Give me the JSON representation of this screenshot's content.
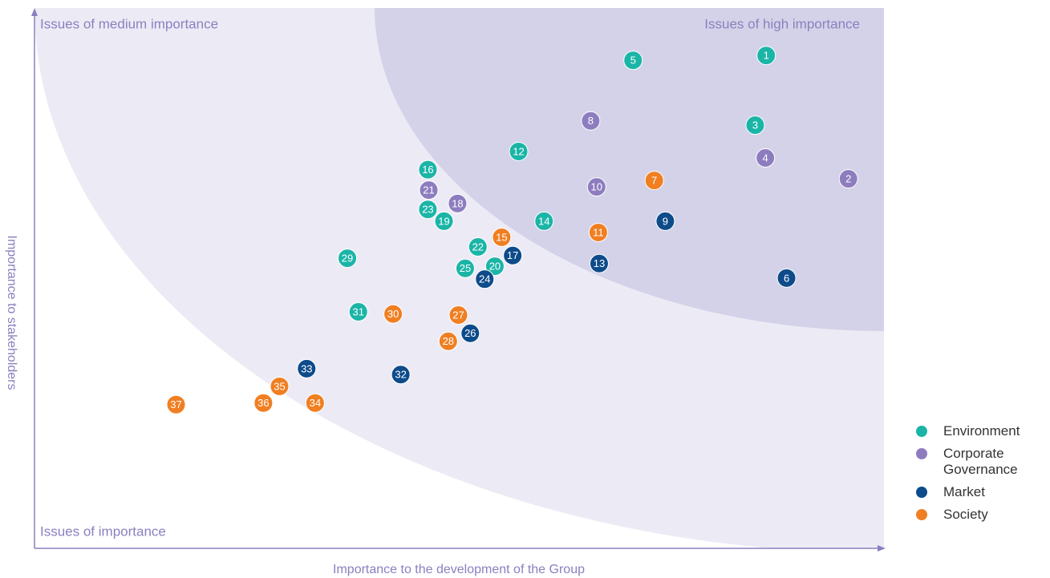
{
  "chart_data": {
    "type": "scatter",
    "x_label": "Importance to the development of the Group",
    "y_label": "Importance to stakeholders",
    "annotations": [
      "Issues of medium importance",
      "Issues of high importance",
      "Issues of importance"
    ],
    "xlim": [
      0,
      100
    ],
    "ylim": [
      0,
      100
    ],
    "series": [
      {
        "name": "Environment",
        "color": "#1bb5a7",
        "labels": [
          "1",
          "5",
          "3",
          "12",
          "16",
          "23",
          "19",
          "14",
          "22",
          "29",
          "25",
          "20",
          "31"
        ],
        "x": [
          86.3,
          70.6,
          85.0,
          57.1,
          46.4,
          46.4,
          48.3,
          60.1,
          52.3,
          36.9,
          50.8,
          54.3,
          38.2
        ],
        "values": [
          91.9,
          91.0,
          78.9,
          74.0,
          70.6,
          63.2,
          61.0,
          61.0,
          56.2,
          54.1,
          52.2,
          52.6,
          44.1
        ]
      },
      {
        "name": "Corporate Governance",
        "color": "#8d7dbf",
        "labels": [
          "8",
          "4",
          "2",
          "10",
          "21",
          "18"
        ],
        "x": [
          65.6,
          86.2,
          96.0,
          66.3,
          46.5,
          49.9
        ],
        "values": [
          79.7,
          72.8,
          68.9,
          67.4,
          66.8,
          64.3
        ]
      },
      {
        "name": "Market",
        "color": "#0d4b8a",
        "labels": [
          "9",
          "17",
          "13",
          "24",
          "6",
          "26",
          "33",
          "32"
        ],
        "x": [
          74.4,
          56.4,
          66.6,
          53.1,
          88.7,
          51.4,
          32.1,
          43.2
        ],
        "values": [
          61.0,
          54.6,
          53.1,
          50.2,
          50.4,
          40.1,
          33.5,
          32.4
        ]
      },
      {
        "name": "Society",
        "color": "#f07f22",
        "labels": [
          "7",
          "11",
          "15",
          "27",
          "30",
          "28",
          "35",
          "36",
          "34",
          "37"
        ],
        "x": [
          73.1,
          66.5,
          55.1,
          50.0,
          42.3,
          48.8,
          28.9,
          27.0,
          33.1,
          16.7
        ],
        "values": [
          68.6,
          58.9,
          58.0,
          43.5,
          43.7,
          38.6,
          30.2,
          27.1,
          27.1,
          26.8
        ]
      }
    ]
  }
}
